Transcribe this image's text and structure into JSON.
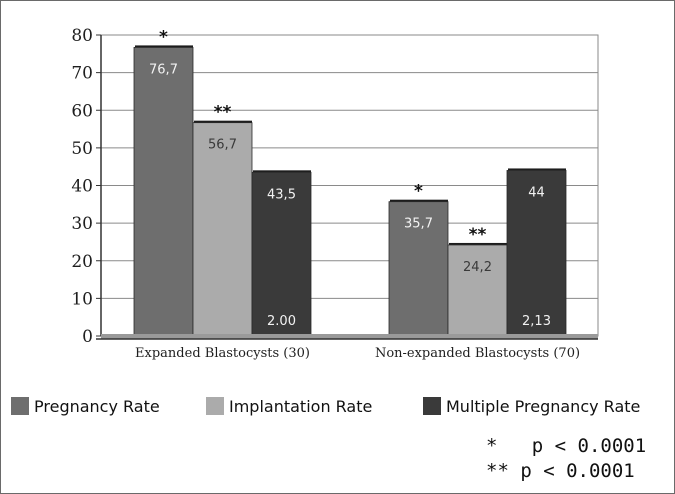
{
  "chart_data": {
    "type": "bar",
    "categories": [
      "Expanded Blastocysts (30)",
      "Non-expanded Blastocysts (70)"
    ],
    "ylim": [
      0,
      80
    ],
    "yticks": [
      0,
      10,
      20,
      30,
      40,
      50,
      60,
      70,
      80
    ],
    "grid": true,
    "series": [
      {
        "name": "Pregnancy Rate",
        "color": "#6e6e6e",
        "values": [
          76.7,
          35.7
        ],
        "labels": [
          "76,7",
          "35,7"
        ],
        "markers": [
          "*",
          "*"
        ],
        "label_color": "#f2f2f2"
      },
      {
        "name": "Implantation Rate",
        "color": "#ababab",
        "values": [
          56.7,
          24.2
        ],
        "labels": [
          "56,7",
          "24,2"
        ],
        "markers": [
          "**",
          "**"
        ],
        "label_color": "#3a3a3a"
      },
      {
        "name": "Multiple Pregnancy Rate",
        "color": "#3a3a3a",
        "values": [
          43.5,
          44
        ],
        "labels": [
          "43,5",
          "44"
        ],
        "markers": [
          "",
          ""
        ],
        "label_color": "#f2f2f2",
        "extra_labels": [
          "2.00",
          "2,13"
        ]
      }
    ],
    "legend_position": "bottom",
    "notes": [
      "*   p < 0.0001",
      "** p < 0.0001"
    ]
  }
}
